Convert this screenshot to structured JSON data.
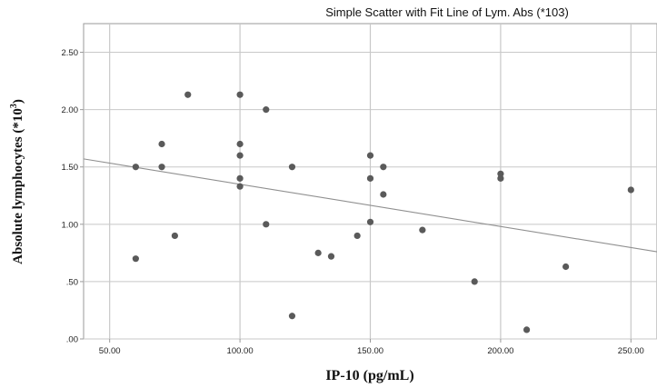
{
  "chart_data": {
    "type": "scatter",
    "title": "Simple Scatter with Fit Line of Lym. Abs (*103)",
    "xlabel": "IP-10 (pg/mL)",
    "ylabel_main": "Absolute lymphocytes (*10",
    "ylabel_sup": "3",
    "ylabel_close": ")",
    "x_ticks": [
      50,
      100,
      150,
      200,
      250
    ],
    "x_tick_labels": [
      "50.00",
      "100.00",
      "150.00",
      "200.00",
      "250.00"
    ],
    "y_ticks": [
      0,
      0.5,
      1.0,
      1.5,
      2.0,
      2.5
    ],
    "y_tick_labels": [
      ".00",
      ".50",
      "1.00",
      "1.50",
      "2.00",
      "2.50"
    ],
    "xlim": [
      40,
      260
    ],
    "ylim": [
      0,
      2.75
    ],
    "grid": true,
    "points": [
      {
        "x": 60,
        "y": 1.5
      },
      {
        "x": 60,
        "y": 0.7
      },
      {
        "x": 70,
        "y": 1.7
      },
      {
        "x": 70,
        "y": 1.5
      },
      {
        "x": 75,
        "y": 0.9
      },
      {
        "x": 80,
        "y": 2.13
      },
      {
        "x": 100,
        "y": 2.13
      },
      {
        "x": 100,
        "y": 1.7
      },
      {
        "x": 100,
        "y": 1.6
      },
      {
        "x": 100,
        "y": 1.4
      },
      {
        "x": 100,
        "y": 1.33
      },
      {
        "x": 110,
        "y": 2.0
      },
      {
        "x": 110,
        "y": 1.0
      },
      {
        "x": 120,
        "y": 1.5
      },
      {
        "x": 120,
        "y": 0.2
      },
      {
        "x": 130,
        "y": 0.75
      },
      {
        "x": 135,
        "y": 0.72
      },
      {
        "x": 145,
        "y": 0.9
      },
      {
        "x": 150,
        "y": 1.6
      },
      {
        "x": 150,
        "y": 1.4
      },
      {
        "x": 150,
        "y": 1.02
      },
      {
        "x": 155,
        "y": 1.5
      },
      {
        "x": 155,
        "y": 1.26
      },
      {
        "x": 170,
        "y": 0.95
      },
      {
        "x": 190,
        "y": 0.5
      },
      {
        "x": 200,
        "y": 1.44
      },
      {
        "x": 200,
        "y": 1.4
      },
      {
        "x": 210,
        "y": 0.08
      },
      {
        "x": 225,
        "y": 0.63
      },
      {
        "x": 250,
        "y": 1.3
      }
    ],
    "fit_line": {
      "x": [
        40,
        260
      ],
      "y": [
        1.57,
        0.76
      ]
    },
    "colors": {
      "point": "#5a5a5a",
      "grid": "#c8c8c8",
      "fit": "#909090",
      "frame": "#9a9a9a"
    }
  }
}
